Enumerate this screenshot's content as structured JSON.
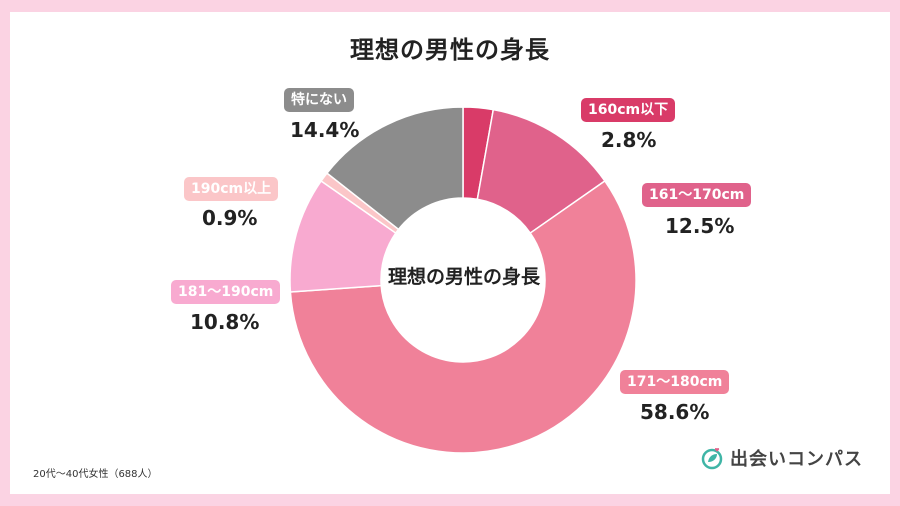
{
  "title": "理想の男性の身長",
  "center_label": "理想の男性の身長",
  "footnote": "20代〜40代女性（688人）",
  "brand": {
    "name": "出会いコンパス",
    "icon": "leaf-heart-logo",
    "color": "#3fb5a6"
  },
  "chart_data": {
    "type": "pie",
    "donut": true,
    "title": "理想の男性の身長",
    "slices": [
      {
        "label": "160cm以下",
        "value": 2.8,
        "value_label": "2.8%",
        "color": "#d93b68"
      },
      {
        "label": "161〜170cm",
        "value": 12.5,
        "value_label": "12.5%",
        "color": "#e0628b"
      },
      {
        "label": "171〜180cm",
        "value": 58.6,
        "value_label": "58.6%",
        "color": "#f08199"
      },
      {
        "label": "181〜190cm",
        "value": 10.8,
        "value_label": "10.8%",
        "color": "#f8aad0"
      },
      {
        "label": "190cm以上",
        "value": 0.9,
        "value_label": "0.9%",
        "color": "#fbc6c8"
      },
      {
        "label": "特にない",
        "value": 14.4,
        "value_label": "14.4%",
        "color": "#8c8c8c"
      }
    ]
  }
}
